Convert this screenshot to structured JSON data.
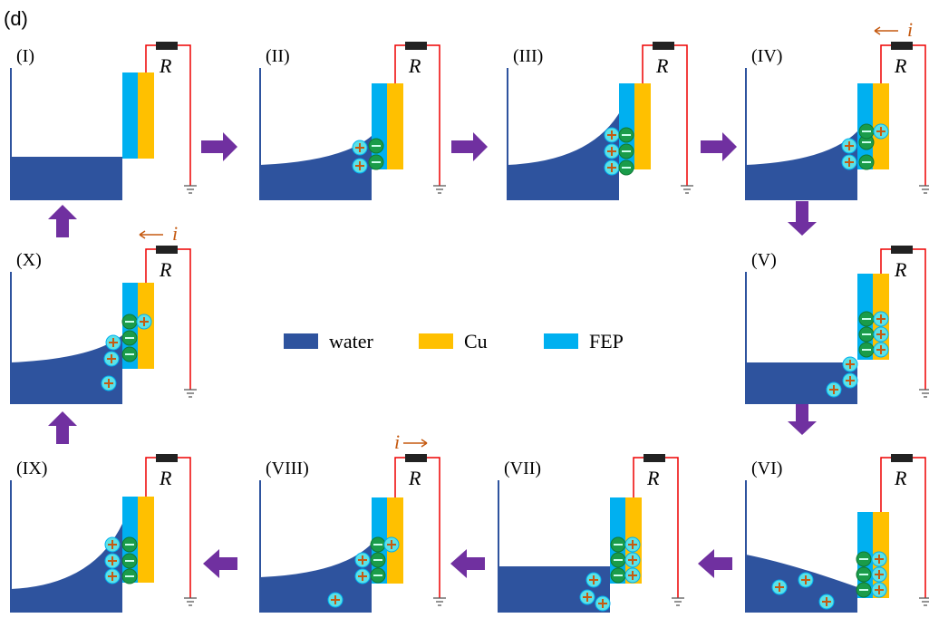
{
  "figure_label": "(d)",
  "panels": [
    {
      "label": "(I)",
      "resistor": "R"
    },
    {
      "label": "(II)",
      "resistor": "R"
    },
    {
      "label": "(III)",
      "resistor": "R"
    },
    {
      "label": "(IV)",
      "resistor": "R",
      "current": "i"
    },
    {
      "label": "(V)",
      "resistor": "R"
    },
    {
      "label": "(VI)",
      "resistor": "R"
    },
    {
      "label": "(VII)",
      "resistor": "R"
    },
    {
      "label": "(VIII)",
      "resistor": "R",
      "current": "i"
    },
    {
      "label": "(IX)",
      "resistor": "R"
    },
    {
      "label": "(X)",
      "resistor": "R",
      "current": "i"
    }
  ],
  "legend": [
    {
      "name": "water",
      "color": "#2e539e"
    },
    {
      "name": "Cu",
      "color": "#ffc000"
    },
    {
      "name": "FEP",
      "color": "#00b0f0"
    }
  ]
}
